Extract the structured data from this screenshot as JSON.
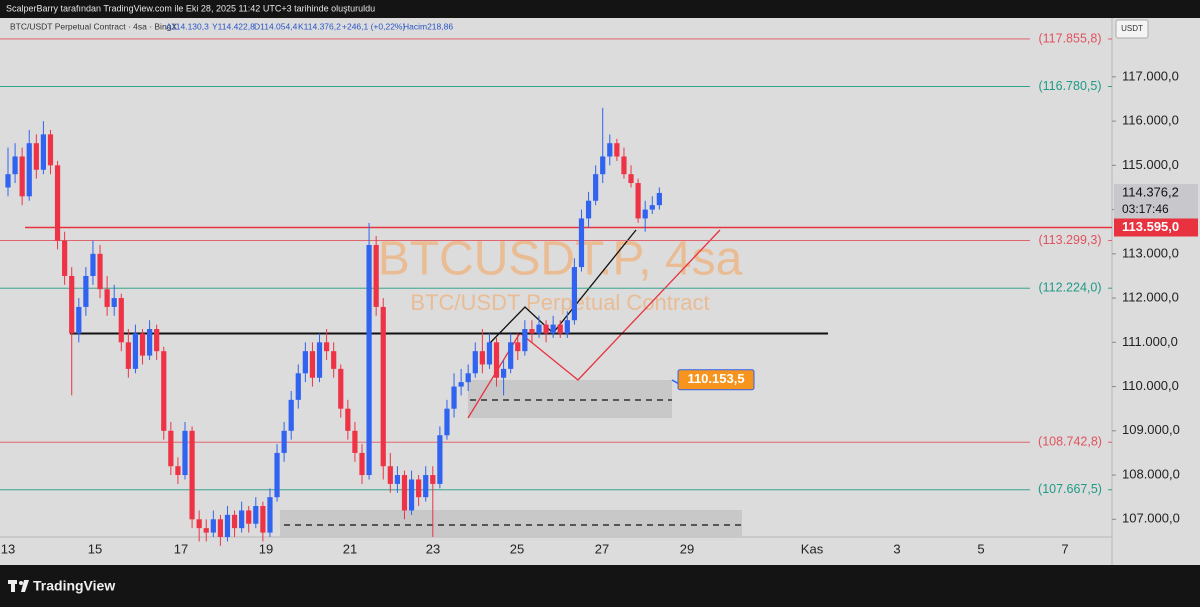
{
  "header": {
    "credit": "ScalperBarry tarafından TradingView.com ile Eki 28, 2025 11:42 UTC+3 tarihinde oluşturuldu",
    "symbol": "BTC/USDT Perpetual Contract · 4sa · BingX",
    "ohlc": [
      "A114.130,3",
      "Y114.422,8",
      "D114.054,4",
      "K114.376,2"
    ],
    "change": "+246,1 (+0,22%)",
    "volume": "Hacim218,86"
  },
  "footer": {
    "brand": "TradingView"
  },
  "chart_data": {
    "type": "candlestick",
    "title": "BTCUSDT.P, 4sa",
    "subtitle": "BTC/USDT Perpetual Contract",
    "currency": "USDT",
    "up_color": "#2f63f0",
    "down_color": "#ee3346",
    "ylim": [
      106600,
      118330
    ],
    "yticks": [
      {
        "value": 107000,
        "label": "107.000,0"
      },
      {
        "value": 108000,
        "label": "108.000,0"
      },
      {
        "value": 109000,
        "label": "109.000,0"
      },
      {
        "value": 110000,
        "label": "110.000,0"
      },
      {
        "value": 111000,
        "label": "111.000,0"
      },
      {
        "value": 112000,
        "label": "112.000,0"
      },
      {
        "value": 113000,
        "label": "113.000,0"
      },
      {
        "value": 114000,
        "label": "114.000,0"
      },
      {
        "value": 115000,
        "label": "115.000,0"
      },
      {
        "value": 116000,
        "label": "116.000,0"
      },
      {
        "value": 117000,
        "label": "117.000,0"
      }
    ],
    "xticks": [
      "13",
      "15",
      "17",
      "19",
      "21",
      "23",
      "25",
      "27",
      "29",
      "Kas",
      "3",
      "5",
      "7"
    ],
    "levels": [
      {
        "value": 117855.8,
        "label": "(117.855,8)",
        "color": "#e0535e"
      },
      {
        "value": 116780.5,
        "label": "(116.780,5)",
        "color": "#1f9a86"
      },
      {
        "value": 113299.3,
        "label": "(113.299,3)",
        "color": "#e0535e"
      },
      {
        "value": 112224.0,
        "label": "(112.224,0)",
        "color": "#1f9a86"
      },
      {
        "value": 108742.8,
        "label": "(108.742,8)",
        "color": "#e0535e"
      },
      {
        "value": 107667.5,
        "label": "(107.667,5)",
        "color": "#1f9a86"
      }
    ],
    "last_price": {
      "value": 114376.2,
      "label": "114.376,2",
      "countdown": "03:17:46"
    },
    "price_line": {
      "value": 113595.0,
      "label": "113.595,0",
      "color": "#e8323f"
    },
    "support_line": 111200,
    "annotation": {
      "value": 110153.5,
      "label": "110.153,5"
    },
    "candles": [
      [
        114500,
        115400,
        114300,
        114800
      ],
      [
        114800,
        115500,
        114600,
        115200
      ],
      [
        115200,
        115400,
        114100,
        114300
      ],
      [
        114300,
        115800,
        114200,
        115500
      ],
      [
        115500,
        115700,
        114700,
        114900
      ],
      [
        114900,
        116000,
        114800,
        115700
      ],
      [
        115700,
        115800,
        114800,
        115000
      ],
      [
        115000,
        115100,
        113100,
        113300
      ],
      [
        113300,
        113500,
        112300,
        112500
      ],
      [
        112500,
        112700,
        109800,
        111200
      ],
      [
        111200,
        112000,
        111000,
        111800
      ],
      [
        111800,
        112700,
        111600,
        112500
      ],
      [
        112500,
        113300,
        112300,
        113000
      ],
      [
        113000,
        113200,
        112000,
        112200
      ],
      [
        112200,
        112500,
        111600,
        111800
      ],
      [
        111800,
        112300,
        111600,
        112000
      ],
      [
        112000,
        112100,
        110800,
        111000
      ],
      [
        111000,
        111300,
        110200,
        110400
      ],
      [
        110400,
        111400,
        110300,
        111200
      ],
      [
        111200,
        111300,
        110500,
        110700
      ],
      [
        110700,
        111500,
        110600,
        111300
      ],
      [
        111300,
        111400,
        110600,
        110800
      ],
      [
        110800,
        110900,
        108800,
        109000
      ],
      [
        109000,
        109200,
        108000,
        108200
      ],
      [
        108200,
        108400,
        107800,
        108000
      ],
      [
        108000,
        109200,
        107900,
        109000
      ],
      [
        109000,
        109100,
        106800,
        107000
      ],
      [
        107000,
        107200,
        106500,
        106800
      ],
      [
        106800,
        107000,
        106500,
        106700
      ],
      [
        106700,
        107200,
        106600,
        107000
      ],
      [
        107000,
        107100,
        106400,
        106600
      ],
      [
        106600,
        107300,
        106500,
        107100
      ],
      [
        107100,
        107200,
        106600,
        106800
      ],
      [
        106800,
        107400,
        106700,
        107200
      ],
      [
        107200,
        107300,
        106700,
        106900
      ],
      [
        106900,
        107500,
        106800,
        107300
      ],
      [
        107300,
        107400,
        106500,
        106700
      ],
      [
        106700,
        107700,
        106600,
        107500
      ],
      [
        107500,
        108700,
        107400,
        108500
      ],
      [
        108500,
        109200,
        108300,
        109000
      ],
      [
        109000,
        109900,
        108800,
        109700
      ],
      [
        109700,
        110500,
        109500,
        110300
      ],
      [
        110300,
        111000,
        110100,
        110800
      ],
      [
        110800,
        111000,
        110000,
        110200
      ],
      [
        110200,
        111200,
        110100,
        111000
      ],
      [
        111000,
        111300,
        110600,
        110800
      ],
      [
        110800,
        111000,
        110200,
        110400
      ],
      [
        110400,
        110500,
        109300,
        109500
      ],
      [
        109500,
        109700,
        108800,
        109000
      ],
      [
        109000,
        109200,
        108300,
        108500
      ],
      [
        108500,
        108700,
        107800,
        108000
      ],
      [
        108000,
        113700,
        107900,
        113200
      ],
      [
        113200,
        113400,
        111600,
        111800
      ],
      [
        111800,
        112000,
        107900,
        108200
      ],
      [
        108200,
        108500,
        107600,
        107800
      ],
      [
        107800,
        108200,
        107600,
        108000
      ],
      [
        108000,
        108100,
        107000,
        107200
      ],
      [
        107200,
        108100,
        107100,
        107900
      ],
      [
        107900,
        108000,
        107300,
        107500
      ],
      [
        107500,
        108200,
        107400,
        108000
      ],
      [
        108000,
        108200,
        106600,
        107800
      ],
      [
        107800,
        109100,
        107700,
        108900
      ],
      [
        108900,
        109700,
        108800,
        109500
      ],
      [
        109500,
        110300,
        109300,
        110000
      ],
      [
        110000,
        110400,
        109800,
        110100
      ],
      [
        110100,
        110500,
        109900,
        110300
      ],
      [
        110300,
        111000,
        110200,
        110800
      ],
      [
        110800,
        111300,
        110300,
        110500
      ],
      [
        110500,
        111200,
        110400,
        111000
      ],
      [
        111000,
        111100,
        110000,
        110200
      ],
      [
        110200,
        110600,
        109800,
        110400
      ],
      [
        110400,
        111200,
        110300,
        111000
      ],
      [
        111000,
        111200,
        110600,
        110800
      ],
      [
        110800,
        111500,
        110700,
        111300
      ],
      [
        111300,
        111500,
        111000,
        111200
      ],
      [
        111200,
        111600,
        111100,
        111400
      ],
      [
        111400,
        111500,
        111000,
        111200
      ],
      [
        111200,
        111600,
        111100,
        111400
      ],
      [
        111400,
        111500,
        111100,
        111200
      ],
      [
        111200,
        111700,
        111100,
        111500
      ],
      [
        111500,
        112900,
        111400,
        112700
      ],
      [
        112700,
        114000,
        112600,
        113800
      ],
      [
        113800,
        114400,
        113600,
        114200
      ],
      [
        114200,
        115000,
        114100,
        114800
      ],
      [
        114800,
        116300,
        114600,
        115200
      ],
      [
        115200,
        115700,
        115000,
        115500
      ],
      [
        115500,
        115600,
        115100,
        115200
      ],
      [
        115200,
        115400,
        114700,
        114800
      ],
      [
        114800,
        115000,
        114500,
        114600
      ],
      [
        114600,
        114700,
        113700,
        113800
      ],
      [
        113800,
        114200,
        113500,
        114000
      ],
      [
        114000,
        114300,
        113900,
        114100
      ],
      [
        114100,
        114500,
        114000,
        114376.2
      ]
    ]
  }
}
